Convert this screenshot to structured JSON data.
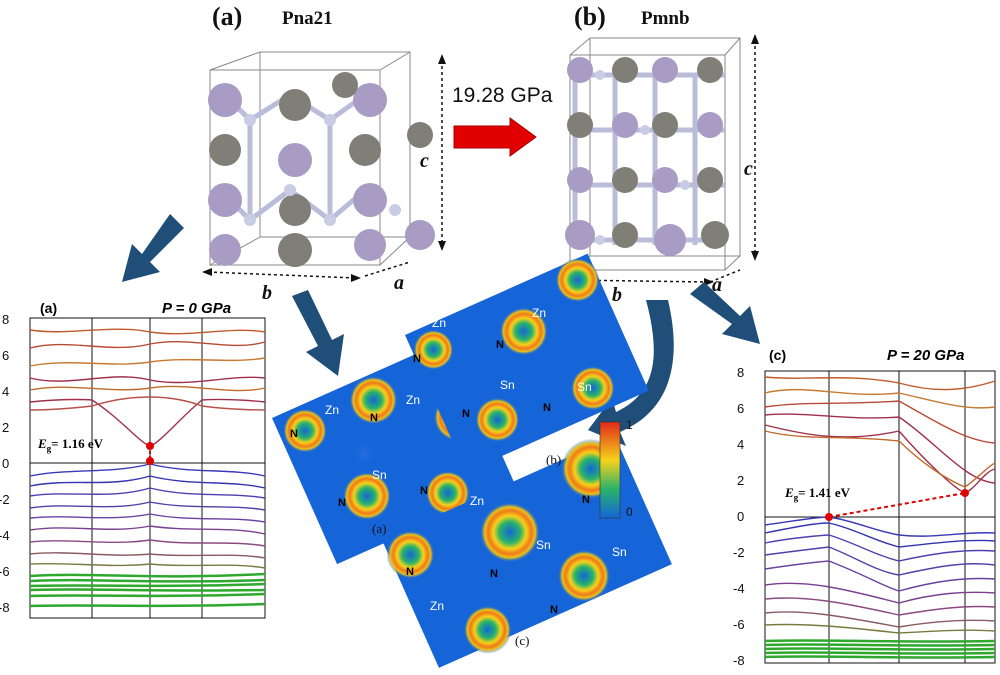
{
  "structure_a": {
    "label": "(a)",
    "space_group": "Pna21",
    "axis_a": "a",
    "axis_b": "b",
    "axis_c": "c"
  },
  "structure_b": {
    "label": "(b)",
    "space_group": "Pmnb",
    "axis_a": "a",
    "axis_b": "b",
    "axis_c": "c"
  },
  "transition": {
    "pressure": "19.28 GPa",
    "arrow_color": "#e00000"
  },
  "band_left": {
    "label": "(a)",
    "pressure": "P = 0 GPa",
    "gap": "E",
    "gap_sub": "g",
    "gap_value": "= 1.16 eV",
    "yticks": [
      "8",
      "6",
      "4",
      "2",
      "0",
      "-2",
      "-4",
      "-6",
      "-8"
    ]
  },
  "band_right": {
    "label": "(c)",
    "pressure": "P = 20 GPa",
    "gap": "E",
    "gap_sub": "g",
    "gap_value": "= 1.41 eV",
    "yticks": [
      "8",
      "6",
      "4",
      "2",
      "0",
      "-2",
      "-4",
      "-6",
      "-8"
    ]
  },
  "elf_a": {
    "label": "(a)",
    "atoms": [
      "Zn",
      "Zn",
      "Sn",
      "N",
      "N",
      "N",
      "N"
    ]
  },
  "elf_b": {
    "label": "(b)",
    "atoms": [
      "Zn",
      "Zn",
      "Sn",
      "Sn",
      "N",
      "N",
      "N",
      "N"
    ]
  },
  "elf_c": {
    "label": "(c)",
    "atoms": [
      "Zn",
      "Zn",
      "Sn",
      "Sn",
      "N",
      "N",
      "N",
      "N"
    ]
  },
  "colorbar": {
    "max": "1",
    "min": "0"
  },
  "colors": {
    "arrow_blue": "#1f4e79",
    "elf_bg": "#1565d8",
    "valence": "#3a3ab8",
    "core": "#2ea82e",
    "conduction": "#a0304a"
  }
}
